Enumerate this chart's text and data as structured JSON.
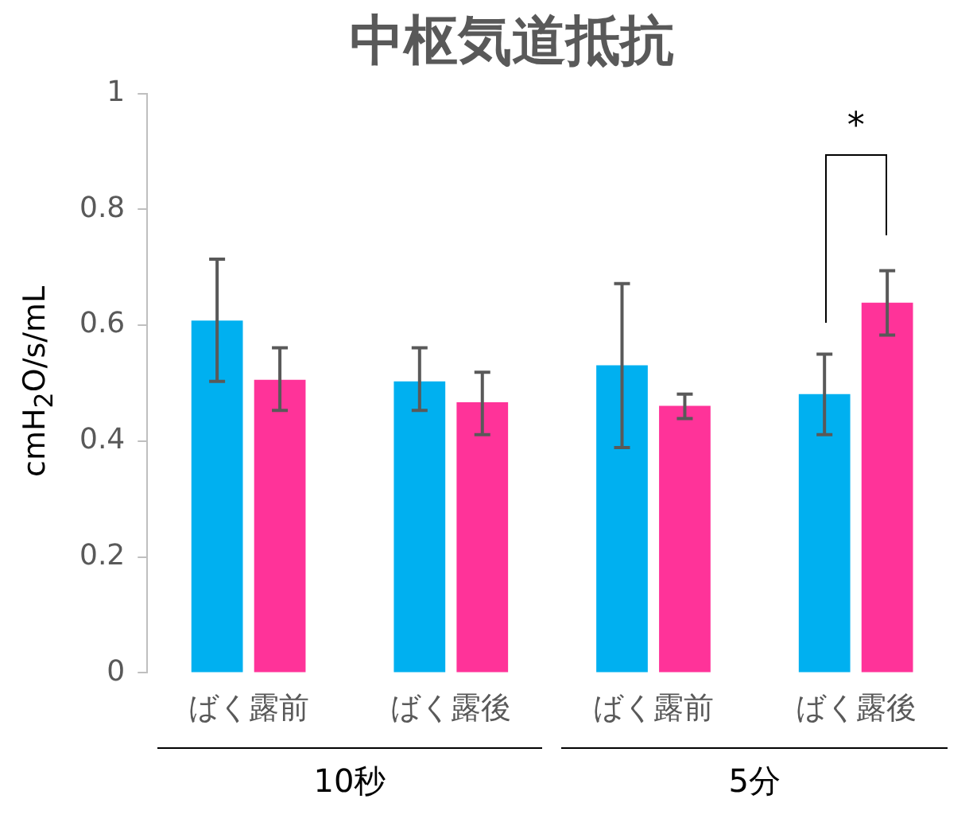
{
  "chart_data": {
    "type": "bar",
    "title": "中枢気道抵抗",
    "ylabel": "cmH$_{2}$O/s/mL",
    "categories": [
      "ばく露前",
      "ばく露後",
      "ばく露前",
      "ばく露後"
    ],
    "series": [
      {
        "color": "#00b0f0",
        "values": [
          0.608,
          0.503,
          0.531,
          0.481
        ],
        "errors": [
          [
            0.503,
            0.714
          ],
          [
            0.453,
            0.561
          ],
          [
            0.389,
            0.672
          ],
          [
            0.411,
            0.55
          ]
        ]
      },
      {
        "color": "#ff3399",
        "values": [
          0.506,
          0.467,
          0.461,
          0.639
        ],
        "errors": [
          [
            0.453,
            0.561
          ],
          [
            0.411,
            0.519
          ],
          [
            0.439,
            0.481
          ],
          [
            0.583,
            0.694
          ]
        ]
      }
    ],
    "ylim": [
      0,
      1
    ],
    "yticks": [
      0,
      0.2,
      0.4,
      0.6,
      0.8,
      1
    ],
    "grid": false,
    "legend": false,
    "annotations": [
      "10秒",
      "5分",
      "*"
    ]
  }
}
